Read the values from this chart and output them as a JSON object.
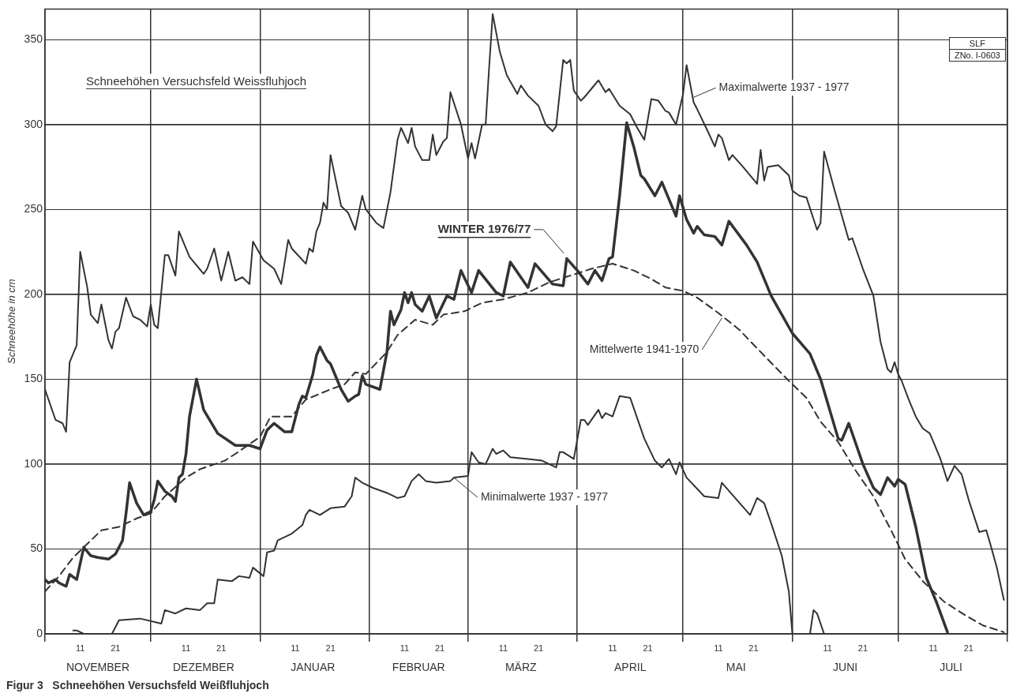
{
  "chart_data": {
    "type": "line",
    "title": "Schneehöhen Versuchsfeld Weissfluhjoch",
    "ylabel": "Schneehöhe in cm",
    "xlim": [
      "1976-11-01",
      "1977-08-01"
    ],
    "ylim": [
      0,
      368
    ],
    "xticks": [
      {
        "value": "1976-11-01",
        "label": null
      },
      {
        "value": "1976-11-11",
        "label": "11"
      },
      {
        "value": "1976-11-21",
        "label": "21"
      },
      {
        "value": "1976-12-01",
        "label": null
      },
      {
        "value": "1976-12-11",
        "label": "11"
      },
      {
        "value": "1976-12-21",
        "label": "21"
      },
      {
        "value": "1977-01-01",
        "label": null
      },
      {
        "value": "1977-01-11",
        "label": "11"
      },
      {
        "value": "1977-01-21",
        "label": "21"
      },
      {
        "value": "1977-02-01",
        "label": null
      },
      {
        "value": "1977-02-11",
        "label": "11"
      },
      {
        "value": "1977-02-21",
        "label": "21"
      },
      {
        "value": "1977-03-01",
        "label": null
      },
      {
        "value": "1977-03-11",
        "label": "11"
      },
      {
        "value": "1977-03-21",
        "label": "21"
      },
      {
        "value": "1977-04-01",
        "label": null
      },
      {
        "value": "1977-04-11",
        "label": "11"
      },
      {
        "value": "1977-04-21",
        "label": "21"
      },
      {
        "value": "1977-05-01",
        "label": null
      },
      {
        "value": "1977-05-11",
        "label": "11"
      },
      {
        "value": "1977-05-21",
        "label": "21"
      },
      {
        "value": "1977-06-01",
        "label": null
      },
      {
        "value": "1977-06-11",
        "label": "11"
      },
      {
        "value": "1977-06-21",
        "label": "21"
      },
      {
        "value": "1977-07-01",
        "label": null
      },
      {
        "value": "1977-07-11",
        "label": "11"
      },
      {
        "value": "1977-07-21",
        "label": "21"
      },
      {
        "value": "1977-08-01",
        "label": null
      }
    ],
    "x2lim": [
      "1976-11-01",
      "1977-08-01"
    ],
    "x2ticks": [
      {
        "value": "1976-11-16",
        "label": "NOVEMBER"
      },
      {
        "value": "1976-12-16",
        "label": "DEZEMBER"
      },
      {
        "value": "1977-01-16",
        "label": "JANUAR"
      },
      {
        "value": "1977-02-15",
        "label": "FEBRUAR"
      },
      {
        "value": "1977-03-16",
        "label": "MÄRZ"
      },
      {
        "value": "1977-04-16",
        "label": "APRIL"
      },
      {
        "value": "1977-05-16",
        "label": "MAI"
      },
      {
        "value": "1977-06-16",
        "label": "JUNI"
      },
      {
        "value": "1977-07-16",
        "label": "JULI"
      }
    ],
    "yticks": [
      0,
      50,
      100,
      150,
      200,
      250,
      300,
      350
    ],
    "grid": true,
    "line_style": "solid",
    "series": [
      {
        "color": "#333333",
        "x": [
          "1976-11-01",
          "1976-11-04",
          "1976-11-06",
          "1976-11-07",
          "1976-11-08",
          "1976-11-10",
          "1976-11-11",
          "1976-11-13",
          "1976-11-14",
          "1976-11-16",
          "1976-11-17",
          "1976-11-19",
          "1976-11-20",
          "1976-11-21",
          "1976-11-22",
          "1976-11-24",
          "1976-11-26",
          "1976-11-28",
          "1976-11-30",
          "1976-12-01",
          "1976-12-02",
          "1976-12-03",
          "1976-12-05",
          "1976-12-06",
          "1976-12-08",
          "1976-12-09",
          "1976-12-11",
          "1976-12-12",
          "1976-12-16",
          "1976-12-17",
          "1976-12-19",
          "1976-12-21",
          "1976-12-23",
          "1976-12-25",
          "1976-12-27",
          "1976-12-29",
          "1976-12-30",
          "1977-01-02",
          "1977-01-05",
          "1977-01-07",
          "1977-01-09",
          "1977-01-10",
          "1977-01-14",
          "1977-01-15",
          "1977-01-16",
          "1977-01-17",
          "1977-01-18",
          "1977-01-19",
          "1977-01-20",
          "1977-01-21",
          "1977-01-23",
          "1977-01-24",
          "1977-01-26",
          "1977-01-28",
          "1977-01-30",
          "1977-01-31",
          "1977-02-03",
          "1977-02-05",
          "1977-02-07",
          "1977-02-09",
          "1977-02-10",
          "1977-02-12",
          "1977-02-13",
          "1977-02-14",
          "1977-02-16",
          "1977-02-18",
          "1977-02-19",
          "1977-02-20",
          "1977-02-22",
          "1977-02-23",
          "1977-02-24",
          "1977-02-27",
          "1977-03-01",
          "1977-03-02",
          "1977-03-03",
          "1977-03-05",
          "1977-03-06",
          "1977-03-07",
          "1977-03-08",
          "1977-03-10",
          "1977-03-12",
          "1977-03-15",
          "1977-03-16",
          "1977-03-18",
          "1977-03-21",
          "1977-03-23",
          "1977-03-25",
          "1977-03-26",
          "1977-03-28",
          "1977-03-29",
          "1977-03-30",
          "1977-03-31",
          "1977-04-02",
          "1977-04-03",
          "1977-04-07",
          "1977-04-09",
          "1977-04-10",
          "1977-04-13",
          "1977-04-16",
          "1977-04-18",
          "1977-04-20",
          "1977-04-22",
          "1977-04-24",
          "1977-04-26",
          "1977-04-27",
          "1977-04-29",
          "1977-05-01",
          "1977-05-02",
          "1977-05-04",
          "1977-05-05",
          "1977-05-08",
          "1977-05-10",
          "1977-05-11",
          "1977-05-12",
          "1977-05-14",
          "1977-05-15",
          "1977-05-18",
          "1977-05-22",
          "1977-05-23",
          "1977-05-24",
          "1977-05-25",
          "1977-05-28",
          "1977-05-31",
          "1977-06-01",
          "1977-06-03",
          "1977-06-05",
          "1977-06-08",
          "1977-06-09",
          "1977-06-10",
          "1977-06-13",
          "1977-06-17",
          "1977-06-18",
          "1977-06-21",
          "1977-06-24",
          "1977-06-26",
          "1977-06-28",
          "1977-06-29",
          "1977-06-30",
          "1977-07-01",
          "1977-07-02",
          "1977-07-04",
          "1977-07-06",
          "1977-07-08",
          "1977-07-10",
          "1977-07-13",
          "1977-07-15",
          "1977-07-17",
          "1977-07-19",
          "1977-07-21",
          "1977-07-24",
          "1977-07-26",
          "1977-07-27",
          "1977-07-29",
          "1977-07-31"
        ],
        "values": [
          144,
          126,
          124,
          119,
          160,
          170,
          225,
          204,
          188,
          183,
          194,
          173,
          168,
          178,
          180,
          198,
          187,
          185,
          181,
          194,
          182,
          180,
          223,
          223,
          211,
          237,
          227,
          222,
          212,
          215,
          227,
          208,
          225,
          208,
          210,
          206,
          231,
          220,
          215,
          206,
          232,
          227,
          218,
          227,
          225,
          237,
          242,
          254,
          250,
          282,
          262,
          252,
          248,
          238,
          258,
          250,
          242,
          239,
          260,
          291,
          298,
          289,
          298,
          287,
          279,
          279,
          294,
          282,
          290,
          292,
          319,
          300,
          280,
          289,
          280,
          300,
          300,
          334,
          365,
          343,
          329,
          318,
          323,
          317,
          311,
          300,
          296,
          299,
          338,
          336,
          338,
          320,
          314,
          316,
          326,
          319,
          321,
          311,
          306,
          298,
          291,
          315,
          314,
          308,
          307,
          300,
          318,
          335,
          313,
          309,
          296,
          287,
          294,
          292,
          279,
          282,
          275,
          265,
          285,
          267,
          275,
          276,
          270,
          261,
          258,
          257,
          238,
          242,
          284,
          261,
          232,
          233,
          215,
          199,
          172,
          156,
          154,
          160,
          153,
          149,
          138,
          128,
          121,
          118,
          103,
          90,
          99,
          94,
          79,
          60,
          61,
          54,
          39,
          20
        ]
      },
      {
        "color": "#333333",
        "x": [
          "1976-11-01",
          "1976-11-02",
          "1976-11-04",
          "1976-11-05",
          "1976-11-07",
          "1976-11-08",
          "1976-11-10",
          "1976-11-12",
          "1976-11-14",
          "1976-11-16",
          "1976-11-19",
          "1976-11-21",
          "1976-11-23",
          "1976-11-24",
          "1976-11-25",
          "1976-11-27",
          "1976-11-29",
          "1976-12-01",
          "1976-12-02",
          "1976-12-03",
          "1976-12-05",
          "1976-12-07",
          "1976-12-08",
          "1976-12-09",
          "1976-12-10",
          "1976-12-11",
          "1976-12-12",
          "1976-12-14",
          "1976-12-16",
          "1976-12-20",
          "1976-12-25",
          "1976-12-29",
          "1977-01-01",
          "1977-01-03",
          "1977-01-05",
          "1977-01-08",
          "1977-01-10",
          "1977-01-12",
          "1977-01-13",
          "1977-01-14",
          "1977-01-16",
          "1977-01-17",
          "1977-01-18",
          "1977-01-20",
          "1977-01-21",
          "1977-01-24",
          "1977-01-26",
          "1977-01-28",
          "1977-01-29",
          "1977-01-30",
          "1977-01-31",
          "1977-02-04",
          "1977-02-05",
          "1977-02-06",
          "1977-02-07",
          "1977-02-08",
          "1977-02-10",
          "1977-02-11",
          "1977-02-12",
          "1977-02-13",
          "1977-02-14",
          "1977-02-16",
          "1977-02-18",
          "1977-02-20",
          "1977-02-23",
          "1977-02-25",
          "1977-02-27",
          "1977-03-02",
          "1977-03-04",
          "1977-03-09",
          "1977-03-11",
          "1977-03-13",
          "1977-03-18",
          "1977-03-20",
          "1977-03-25",
          "1977-03-28",
          "1977-03-29",
          "1977-04-01",
          "1977-04-04",
          "1977-04-06",
          "1977-04-08",
          "1977-04-10",
          "1977-04-11",
          "1977-04-13",
          "1977-04-15",
          "1977-04-17",
          "1977-04-19",
          "1977-04-20",
          "1977-04-23",
          "1977-04-25",
          "1977-04-29",
          "1977-04-30",
          "1977-05-02",
          "1977-05-04",
          "1977-05-05",
          "1977-05-07",
          "1977-05-10",
          "1977-05-12",
          "1977-05-14",
          "1977-05-19",
          "1977-05-22",
          "1977-05-26",
          "1977-06-01",
          "1977-06-06",
          "1977-06-09",
          "1977-06-14",
          "1977-06-15",
          "1977-06-17",
          "1977-06-21",
          "1977-06-24",
          "1977-06-26",
          "1977-06-28",
          "1977-06-30",
          "1977-07-01",
          "1977-07-03",
          "1977-07-06",
          "1977-07-09",
          "1977-07-12",
          "1977-07-15"
        ],
        "values": [
          32,
          30,
          32,
          30,
          28,
          35,
          32,
          51,
          46,
          45,
          44,
          47,
          55,
          71,
          89,
          77,
          70,
          72,
          79,
          90,
          84,
          81,
          78,
          92,
          94,
          106,
          128,
          150,
          132,
          118,
          111,
          111,
          109,
          120,
          124,
          119,
          119,
          135,
          140,
          139,
          153,
          164,
          169,
          161,
          159,
          144,
          137,
          140,
          141,
          152,
          147,
          144,
          155,
          166,
          190,
          182,
          191,
          201,
          195,
          201,
          194,
          190,
          199,
          186,
          199,
          197,
          214,
          201,
          214,
          201,
          199,
          219,
          204,
          218,
          206,
          205,
          221,
          214,
          206,
          214,
          208,
          221,
          222,
          258,
          301,
          287,
          270,
          268,
          258,
          266,
          246,
          258,
          244,
          236,
          240,
          235,
          234,
          229,
          243,
          229,
          219,
          199,
          177,
          165,
          150,
          115,
          114,
          124,
          100,
          86,
          82,
          92,
          87,
          91,
          88,
          63,
          33,
          18,
          1
        ]
      },
      {
        "color": "#333333",
        "line_style": "dashed",
        "x": [
          "1976-11-01",
          "1976-11-05",
          "1976-11-09",
          "1976-11-13",
          "1976-11-17",
          "1976-11-22",
          "1976-11-27",
          "1976-12-01",
          "1976-12-05",
          "1976-12-11",
          "1976-12-15",
          "1976-12-22",
          "1976-12-25",
          "1977-01-01",
          "1977-01-04",
          "1977-01-10",
          "1977-01-14",
          "1977-01-21",
          "1977-01-25",
          "1977-01-28",
          "1977-01-31",
          "1977-02-06",
          "1977-02-09",
          "1977-02-14",
          "1977-02-19",
          "1977-02-22",
          "1977-02-28",
          "1977-03-05",
          "1977-03-11",
          "1977-03-18",
          "1977-03-24",
          "1977-03-30",
          "1977-04-05",
          "1977-04-11",
          "1977-04-17",
          "1977-04-22",
          "1977-04-26",
          "1977-05-01",
          "1977-05-05",
          "1977-05-11",
          "1977-05-17",
          "1977-05-23",
          "1977-05-31",
          "1977-06-05",
          "1977-06-09",
          "1977-06-14",
          "1977-06-19",
          "1977-06-24",
          "1977-06-29",
          "1977-07-03",
          "1977-07-08",
          "1977-07-14",
          "1977-07-20",
          "1977-07-25",
          "1977-07-31"
        ],
        "values": [
          25,
          34,
          45,
          53,
          61,
          63,
          68,
          71,
          81,
          92,
          97,
          102,
          106,
          116,
          128,
          128,
          138,
          144,
          147,
          154,
          153,
          166,
          176,
          185,
          182,
          188,
          190,
          195,
          197,
          201,
          207,
          211,
          215,
          218,
          214,
          209,
          204,
          202,
          198,
          189,
          179,
          166,
          149,
          139,
          125,
          113,
          96,
          81,
          61,
          44,
          31,
          19,
          11,
          5,
          1
        ]
      },
      {
        "color": "#333333",
        "x": [
          "1976-11-09",
          "1976-11-10",
          "1976-11-12",
          "1976-11-16",
          "1976-11-20",
          "1976-11-22",
          "1976-11-28",
          "1976-12-04",
          "1976-12-05",
          "1976-12-08",
          "1976-12-11",
          "1976-12-15",
          "1976-12-17",
          "1976-12-19",
          "1976-12-20",
          "1976-12-24",
          "1976-12-26",
          "1976-12-29",
          "1976-12-30",
          "1977-01-02",
          "1977-01-03",
          "1977-01-05",
          "1977-01-06",
          "1977-01-10",
          "1977-01-13",
          "1977-01-14",
          "1977-01-15",
          "1977-01-18",
          "1977-01-21",
          "1977-01-25",
          "1977-01-27",
          "1977-01-28",
          "1977-01-30",
          "1977-02-02",
          "1977-02-06",
          "1977-02-09",
          "1977-02-11",
          "1977-02-13",
          "1977-02-15",
          "1977-02-17",
          "1977-02-20",
          "1977-02-24",
          "1977-02-25",
          "1977-03-01",
          "1977-03-02",
          "1977-03-04",
          "1977-03-06",
          "1977-03-08",
          "1977-03-09",
          "1977-03-11",
          "1977-03-13",
          "1977-03-18",
          "1977-03-22",
          "1977-03-26",
          "1977-03-27",
          "1977-03-28",
          "1977-03-31",
          "1977-04-02",
          "1977-04-03",
          "1977-04-04",
          "1977-04-07",
          "1977-04-08",
          "1977-04-09",
          "1977-04-11",
          "1977-04-13",
          "1977-04-16",
          "1977-04-20",
          "1977-04-23",
          "1977-04-25",
          "1977-04-27",
          "1977-04-29",
          "1977-04-30",
          "1977-05-02",
          "1977-05-07",
          "1977-05-11",
          "1977-05-12",
          "1977-05-20",
          "1977-05-22",
          "1977-05-24",
          "1977-05-26",
          "1977-05-29",
          "1977-05-31",
          "1977-06-01",
          "1977-06-03",
          "1977-06-06",
          "1977-06-07",
          "1977-06-08",
          "1977-06-10"
        ],
        "values": [
          2,
          2,
          0,
          null,
          0,
          8,
          9,
          6,
          14,
          12,
          15,
          14,
          18,
          18,
          32,
          31,
          34,
          33,
          39,
          34,
          48,
          49,
          55,
          59,
          64,
          70,
          73,
          70,
          74,
          75,
          81,
          92,
          89,
          86,
          83,
          80,
          81,
          90,
          94,
          90,
          89,
          90,
          92,
          93,
          107,
          101,
          100,
          109,
          106,
          108,
          104,
          103,
          102,
          98,
          107,
          107,
          103,
          126,
          126,
          123,
          132,
          127,
          130,
          128,
          140,
          139,
          115,
          102,
          98,
          103,
          94,
          101,
          92,
          81,
          80,
          89,
          70,
          80,
          77,
          65,
          46,
          25,
          0,
          null,
          0,
          14,
          12,
          0
        ]
      }
    ],
    "annotations": [
      {
        "text": "Maximalwerte 1937 - 1977",
        "x": "1977-05-04",
        "y": 316
      },
      {
        "text": "Mittelwerte 1941-1970",
        "x": "1977-05-12",
        "y": 186
      },
      {
        "text": "Minimalwerte 1937 - 1977",
        "x": "1977-02-25",
        "y": 92
      },
      "WINTER 1976/77",
      "SLF",
      "ZNo. I-0603",
      "Figur 3   Schneehöhen Versuchsfeld Weißfluhjoch"
    ]
  }
}
